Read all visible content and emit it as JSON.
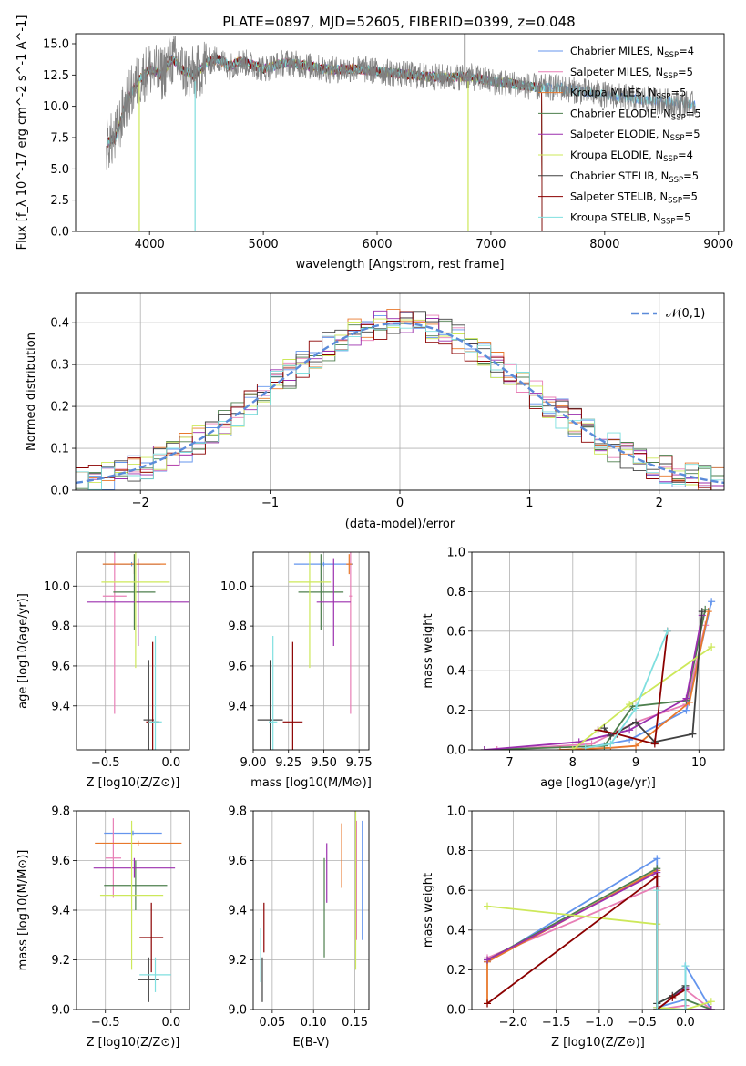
{
  "title": "PLATE=0897, MJD=52605, FIBERID=0399, z=0.048",
  "colors": [
    "#6495ed",
    "#e87fb6",
    "#e8782c",
    "#4d7f4d",
    "#9b2fae",
    "#cde85a",
    "#404040",
    "#8b0000",
    "#7fdfdf"
  ],
  "models": [
    {
      "name": "Chabrier MILES",
      "nssp": "4",
      "color": "#6495ed"
    },
    {
      "name": "Salpeter MILES",
      "nssp": "5",
      "color": "#e87fb6"
    },
    {
      "name": "Kroupa MILES",
      "nssp": "5",
      "color": "#e8782c"
    },
    {
      "name": "Chabrier ELODIE",
      "nssp": "5",
      "color": "#4d7f4d"
    },
    {
      "name": "Salpeter ELODIE",
      "nssp": "5",
      "color": "#9b2fae"
    },
    {
      "name": "Kroupa ELODIE",
      "nssp": "4",
      "color": "#cde85a"
    },
    {
      "name": "Chabrier STELIB",
      "nssp": "5",
      "color": "#404040"
    },
    {
      "name": "Salpeter STELIB",
      "nssp": "5",
      "color": "#8b0000"
    },
    {
      "name": "Kroupa STELIB",
      "nssp": "5",
      "color": "#7fdfdf"
    }
  ],
  "chart_data": [
    {
      "id": "spectrum",
      "type": "line",
      "title": "PLATE=0897, MJD=52605, FIBERID=0399, z=0.048",
      "xlabel": "wavelength [Angstrom, rest frame]",
      "ylabel": "Flux [f_λ 10^-17 erg cm^-2 s^-1 A^-1]",
      "xlim": [
        3350,
        9050
      ],
      "ylim": [
        0,
        15.8
      ],
      "xticks": [
        4000,
        5000,
        6000,
        7000,
        8000,
        9000
      ],
      "yticks": [
        0.0,
        2.5,
        5.0,
        7.5,
        10.0,
        12.5,
        15.0
      ],
      "ytick_labels": [
        "0.0",
        "2.5",
        "5.0",
        "7.5",
        "10.0",
        "12.5",
        "15.0"
      ],
      "grid": false,
      "legend": "top-right",
      "observed": {
        "x": [
          3620,
          3700,
          3800,
          3900,
          4000,
          4100,
          4200,
          4300,
          4400,
          4500,
          4600,
          4700,
          4800,
          4900,
          5000,
          5200,
          5400,
          5600,
          5800,
          6000,
          6200,
          6400,
          6600,
          6800,
          7000,
          7200,
          7400,
          7600,
          7800,
          8000,
          8200,
          8400,
          8600,
          8800
        ],
        "y": [
          7.0,
          7.5,
          10.5,
          12.0,
          13.0,
          12.5,
          13.8,
          12.8,
          12.5,
          13.5,
          13.8,
          13.2,
          13.6,
          13.3,
          13.0,
          13.5,
          13.2,
          12.9,
          13.0,
          12.8,
          12.6,
          12.4,
          12.3,
          12.4,
          12.0,
          11.8,
          11.5,
          11.5,
          11.2,
          10.9,
          10.7,
          10.5,
          10.3,
          10.1
        ]
      }
    },
    {
      "id": "residuals",
      "type": "line",
      "xlabel": "(data-model)/error",
      "ylabel": "Normed distribution",
      "xlim": [
        -2.5,
        2.5
      ],
      "ylim": [
        0,
        0.47
      ],
      "xticks": [
        -2,
        -1,
        0,
        1,
        2
      ],
      "xtick_labels": [
        "−2",
        "−1",
        "0",
        "1",
        "2"
      ],
      "yticks": [
        0.0,
        0.1,
        0.2,
        0.3,
        0.4
      ],
      "ytick_labels": [
        "0.0",
        "0.1",
        "0.2",
        "0.3",
        "0.4"
      ],
      "grid": true,
      "legend": "top-right",
      "reference": {
        "label": "𝒩(0,1)",
        "mu": 0,
        "sigma": 1
      },
      "bins": {
        "start": -2.5,
        "width": 0.1,
        "count": 50
      }
    },
    {
      "id": "age_vs_Z",
      "type": "scatter",
      "xlabel": "Z [log10(Z/Z⊙)]",
      "ylabel": "age [log10(age/yr)]",
      "xlim": [
        -0.72,
        0.14
      ],
      "ylim": [
        9.18,
        10.17
      ],
      "xticks": [
        -0.5,
        0.0
      ],
      "xtick_labels": [
        "−0.5",
        "0.0"
      ],
      "yticks": [
        9.4,
        9.6,
        9.8,
        10.0
      ],
      "ytick_labels": [
        "9.4",
        "9.6",
        "9.8",
        "10.0"
      ],
      "grid": true,
      "points": [
        {
          "x": -0.3,
          "y": 10.11,
          "xerr": 0.22,
          "yerr": 0.01
        },
        {
          "x": -0.43,
          "y": 9.95,
          "xerr": 0.09,
          "yerr": 0.59
        },
        {
          "x": -0.28,
          "y": 10.11,
          "xerr": 0.24,
          "yerr": 0.05
        },
        {
          "x": -0.28,
          "y": 9.97,
          "xerr": 0.16,
          "yerr": 0.19
        },
        {
          "x": -0.25,
          "y": 9.92,
          "xerr": 0.39,
          "yerr": 0.22
        },
        {
          "x": -0.27,
          "y": 10.02,
          "xerr": 0.26,
          "yerr": 0.43
        },
        {
          "x": -0.17,
          "y": 9.33,
          "xerr": 0.04,
          "yerr": 0.3
        },
        {
          "x": -0.14,
          "y": 9.32,
          "xerr": 0.05,
          "yerr": 0.4
        },
        {
          "x": -0.12,
          "y": 9.32,
          "xerr": 0.05,
          "yerr": 0.43
        }
      ]
    },
    {
      "id": "age_vs_mass",
      "type": "scatter",
      "xlabel": "mass [log10(M/M⊙)]",
      "ylabel": "",
      "xlim": [
        9.0,
        9.82
      ],
      "ylim": [
        9.18,
        10.17
      ],
      "xticks": [
        9.0,
        9.25,
        9.5,
        9.75
      ],
      "xtick_labels": [
        "9.00",
        "9.25",
        "9.50",
        "9.75"
      ],
      "yticks": [
        9.4,
        9.6,
        9.8,
        10.0
      ],
      "ytick_labels": [
        "9.4",
        "9.6",
        "9.8",
        "10.0"
      ],
      "grid": true,
      "points": [
        {
          "x": 9.5,
          "y": 10.11,
          "xerr": 0.21,
          "yerr": 0.01
        },
        {
          "x": 9.69,
          "y": 9.95,
          "xerr": 0.01,
          "yerr": 0.59
        },
        {
          "x": 9.68,
          "y": 10.11,
          "xerr": 0.02,
          "yerr": 0.05
        },
        {
          "x": 9.48,
          "y": 9.97,
          "xerr": 0.16,
          "yerr": 0.19
        },
        {
          "x": 9.57,
          "y": 9.92,
          "xerr": 0.12,
          "yerr": 0.22
        },
        {
          "x": 9.4,
          "y": 10.02,
          "xerr": 0.15,
          "yerr": 0.43
        },
        {
          "x": 9.12,
          "y": 9.33,
          "xerr": 0.09,
          "yerr": 0.3
        },
        {
          "x": 9.28,
          "y": 9.32,
          "xerr": 0.07,
          "yerr": 0.4
        },
        {
          "x": 9.14,
          "y": 9.32,
          "xerr": 0.03,
          "yerr": 0.43
        }
      ]
    },
    {
      "id": "weights_vs_age",
      "type": "line",
      "xlabel": "age [log10(age/yr)]",
      "ylabel": "mass weight",
      "xlim": [
        6.4,
        10.4
      ],
      "ylim": [
        0,
        1.0
      ],
      "xticks": [
        7,
        8,
        9,
        10
      ],
      "xtick_labels": [
        "7",
        "8",
        "9",
        "10"
      ],
      "yticks": [
        0.0,
        0.2,
        0.4,
        0.6,
        0.8,
        1.0
      ],
      "ytick_labels": [
        "0.0",
        "0.2",
        "0.4",
        "0.6",
        "0.8",
        "1.0"
      ],
      "grid": true,
      "series": [
        {
          "x": [
            8.2,
            8.9,
            9.8,
            10.2
          ],
          "y": [
            0.01,
            0.05,
            0.2,
            0.75
          ]
        },
        {
          "x": [
            6.8,
            8.3,
            9.0,
            9.8,
            10.1
          ],
          "y": [
            0.0,
            0.03,
            0.14,
            0.23,
            0.63
          ]
        },
        {
          "x": [
            7.8,
            8.6,
            9.0,
            9.85,
            10.15
          ],
          "y": [
            0.0,
            0.01,
            0.02,
            0.24,
            0.7
          ]
        },
        {
          "x": [
            6.6,
            8.5,
            8.95,
            9.8,
            10.1
          ],
          "y": [
            0.0,
            0.02,
            0.22,
            0.25,
            0.71
          ]
        },
        {
          "x": [
            6.6,
            8.1,
            8.9,
            9.8,
            10.05
          ],
          "y": [
            0.0,
            0.04,
            0.1,
            0.26,
            0.68
          ]
        },
        {
          "x": [
            8.0,
            8.9,
            10.2
          ],
          "y": [
            0.0,
            0.23,
            0.52
          ]
        },
        {
          "x": [
            8.5,
            8.6,
            9.0,
            9.3,
            9.9,
            10.05
          ],
          "y": [
            0.11,
            0.07,
            0.14,
            0.04,
            0.08,
            0.7
          ]
        },
        {
          "x": [
            8.4,
            8.7,
            9.3,
            9.5
          ],
          "y": [
            0.1,
            0.08,
            0.03,
            0.6
          ]
        },
        {
          "x": [
            8.2,
            8.6,
            9.0,
            9.5
          ],
          "y": [
            0.01,
            0.03,
            0.21,
            0.6
          ]
        }
      ]
    },
    {
      "id": "mass_vs_Z",
      "type": "scatter",
      "xlabel": "Z [log10(Z/Z⊙)]",
      "ylabel": "mass [log10(M/M⊙)]",
      "xlim": [
        -0.72,
        0.14
      ],
      "ylim": [
        9.0,
        9.8
      ],
      "xticks": [
        -0.5,
        0.0
      ],
      "xtick_labels": [
        "−0.5",
        "0.0"
      ],
      "yticks": [
        9.0,
        9.2,
        9.4,
        9.6,
        9.8
      ],
      "ytick_labels": [
        "9.0",
        "9.2",
        "9.4",
        "9.6",
        "9.8"
      ],
      "grid": true,
      "points": [
        {
          "x": -0.29,
          "y": 9.71,
          "xerr": 0.22,
          "yerr": 0.01
        },
        {
          "x": -0.44,
          "y": 9.61,
          "xerr": 0.06,
          "yerr": 0.16
        },
        {
          "x": -0.25,
          "y": 9.67,
          "xerr": 0.33,
          "yerr": 0.01
        },
        {
          "x": -0.27,
          "y": 9.5,
          "xerr": 0.24,
          "yerr": 0.1
        },
        {
          "x": -0.28,
          "y": 9.57,
          "xerr": 0.31,
          "yerr": 0.04
        },
        {
          "x": -0.3,
          "y": 9.46,
          "xerr": 0.24,
          "yerr": 0.3
        },
        {
          "x": -0.17,
          "y": 9.12,
          "xerr": 0.08,
          "yerr": 0.09
        },
        {
          "x": -0.15,
          "y": 9.29,
          "xerr": 0.09,
          "yerr": 0.14
        },
        {
          "x": -0.12,
          "y": 9.14,
          "xerr": 0.12,
          "yerr": 0.07
        }
      ]
    },
    {
      "id": "mass_vs_ebv",
      "type": "scatter",
      "xlabel": "E(B-V)",
      "ylabel": "",
      "xlim": [
        0.027,
        0.167
      ],
      "ylim": [
        9.0,
        9.8
      ],
      "xticks": [
        0.05,
        0.1,
        0.15
      ],
      "xtick_labels": [
        "0.05",
        "0.10",
        "0.15"
      ],
      "yticks": [
        9.0,
        9.2,
        9.4,
        9.6,
        9.8
      ],
      "ytick_labels": [
        "9.0",
        "9.2",
        "9.4",
        "9.6",
        "9.8"
      ],
      "grid": true,
      "points": [
        {
          "x": 0.159,
          "y": 9.52,
          "yerr": 0.24
        },
        {
          "x": 0.152,
          "y": 9.52,
          "yerr": 0.24
        },
        {
          "x": 0.134,
          "y": 9.62,
          "yerr": 0.13
        },
        {
          "x": 0.113,
          "y": 9.41,
          "yerr": 0.2
        },
        {
          "x": 0.116,
          "y": 9.55,
          "yerr": 0.12
        },
        {
          "x": 0.151,
          "y": 9.56,
          "yerr": 0.4
        },
        {
          "x": 0.038,
          "y": 9.12,
          "yerr": 0.09
        },
        {
          "x": 0.04,
          "y": 9.33,
          "yerr": 0.1
        },
        {
          "x": 0.036,
          "y": 9.22,
          "yerr": 0.11
        }
      ]
    },
    {
      "id": "weights_vs_Z",
      "type": "line",
      "xlabel": "Z [log10(Z/Z⊙)]",
      "ylabel": "mass weight",
      "xlim": [
        -2.48,
        0.45
      ],
      "ylim": [
        0,
        1.0
      ],
      "xticks": [
        -2.0,
        -1.5,
        -1.0,
        -0.5,
        0.0
      ],
      "xtick_labels": [
        "−2.0",
        "−1.5",
        "−1.0",
        "−0.5",
        "0.0"
      ],
      "yticks": [
        0.0,
        0.2,
        0.4,
        0.6,
        0.8,
        1.0
      ],
      "ytick_labels": [
        "0.0",
        "0.2",
        "0.4",
        "0.6",
        "0.8",
        "1.0"
      ],
      "grid": true,
      "series": [
        {
          "x": [
            -2.3,
            -0.33,
            -0.33,
            0.0,
            0.0,
            0.3
          ],
          "y": [
            0.24,
            0.76,
            0.01,
            0.05,
            0.22,
            0.0
          ]
        },
        {
          "x": [
            -2.3,
            -0.33,
            -0.33,
            0.0,
            0.0,
            0.3
          ],
          "y": [
            0.26,
            0.62,
            0.0,
            0.02,
            0.1,
            0.0
          ]
        },
        {
          "x": [
            -2.3,
            -2.3,
            -0.33,
            -0.33,
            0.0,
            0.0
          ],
          "y": [
            0.03,
            0.24,
            0.7,
            0.0,
            0.0,
            0.0
          ]
        },
        {
          "x": [
            -2.3,
            -0.33,
            -0.33,
            0.0,
            0.0,
            0.3
          ],
          "y": [
            0.25,
            0.71,
            0.03,
            0.1,
            0.05,
            0.0
          ]
        },
        {
          "x": [
            -2.3,
            -0.33,
            -0.33,
            0.0,
            0.0,
            0.3
          ],
          "y": [
            0.25,
            0.69,
            0.0,
            0.11,
            0.0,
            0.0
          ]
        },
        {
          "x": [
            -2.3,
            -0.33,
            -0.33,
            0.0,
            0.0,
            0.3
          ],
          "y": [
            0.52,
            0.43,
            0.01,
            0.0,
            0.0,
            0.04
          ]
        },
        {
          "x": [
            -0.33,
            -0.33,
            -0.15,
            0.0,
            0.0
          ],
          "y": [
            0.0,
            0.03,
            0.07,
            0.12,
            0.0
          ]
        },
        {
          "x": [
            -2.3,
            -0.33,
            -0.33,
            -0.15,
            0.0,
            0.0
          ],
          "y": [
            0.03,
            0.67,
            0.0,
            0.06,
            0.1,
            0.0
          ]
        },
        {
          "x": [
            -0.33,
            -0.33,
            0.0,
            0.0
          ],
          "y": [
            0.6,
            0.0,
            0.0,
            0.22
          ]
        }
      ]
    }
  ]
}
